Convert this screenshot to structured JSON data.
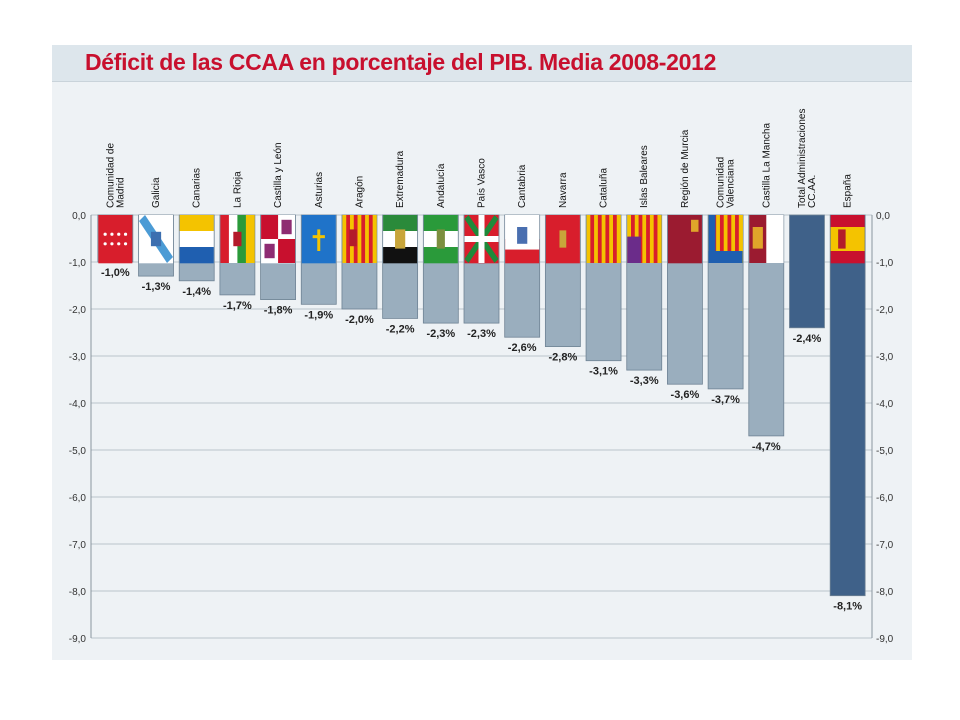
{
  "title": "Déficit de las CCAA en porcentaje del PIB. Media 2008-2012",
  "colors": {
    "accent_title": "#c8102e",
    "bar_region": "#9aaebe",
    "bar_total": "#3f6189"
  },
  "chart_data": {
    "type": "bar",
    "title": "Déficit de las CCAA en porcentaje del PIB. Media 2008-2012",
    "xlabel": "",
    "ylabel": "",
    "ylim": [
      -9,
      0
    ],
    "yticks": [
      "0,0",
      "-1,0",
      "-2,0",
      "-3,0",
      "-4,0",
      "-5,0",
      "-6,0",
      "-7,0",
      "-8,0",
      "-9,0"
    ],
    "grid": true,
    "categories": [
      "Comunidad de Madrid",
      "Galicia",
      "Canarias",
      "La Rioja",
      "Castilla y León",
      "Asturias",
      "Aragón",
      "Extremadura",
      "Andalucía",
      "País Vasco",
      "Cantabria",
      "Navarra",
      "Cataluña",
      "Islas Baleares",
      "Región de Murcia",
      "Comunidad Valenciana",
      "Castilla La Mancha",
      "Total Administraciones CC.AA.",
      "España"
    ],
    "values": [
      -1.0,
      -1.3,
      -1.4,
      -1.7,
      -1.8,
      -1.9,
      -2.0,
      -2.2,
      -2.3,
      -2.3,
      -2.6,
      -2.8,
      -3.1,
      -3.3,
      -3.6,
      -3.7,
      -4.7,
      -2.4,
      -8.1
    ],
    "value_labels": [
      "-1,0%",
      "-1,3%",
      "-1,4%",
      "-1,7%",
      "-1,8%",
      "-1,9%",
      "-2,0%",
      "-2,2%",
      "-2,3%",
      "-2,3%",
      "-2,6%",
      "-2,8%",
      "-3,1%",
      "-3,3%",
      "-3,6%",
      "-3,7%",
      "-4,7%",
      "-2,4%",
      "-8,1%"
    ],
    "label_lines": [
      [
        "Comunidad de",
        "Madrid"
      ],
      [
        "Galicia"
      ],
      [
        "Canarias"
      ],
      [
        "La Rioja"
      ],
      [
        "Castilla y León"
      ],
      [
        "Asturias"
      ],
      [
        "Aragón"
      ],
      [
        "Extremadura"
      ],
      [
        "Andalucía"
      ],
      [
        "País Vasco"
      ],
      [
        "Cantabria"
      ],
      [
        "Navarra"
      ],
      [
        "Cataluña"
      ],
      [
        "Islas Baleares"
      ],
      [
        "Región de Murcia"
      ],
      [
        "Comunidad",
        "Valenciana"
      ],
      [
        "Castilla La Mancha"
      ],
      [
        "Total Administraciones",
        "CC.AA."
      ],
      [
        "España"
      ]
    ],
    "bar_kind": [
      "region",
      "region",
      "region",
      "region",
      "region",
      "region",
      "region",
      "region",
      "region",
      "region",
      "region",
      "region",
      "region",
      "region",
      "region",
      "region",
      "region",
      "total",
      "total"
    ],
    "flags": [
      "madrid-flag",
      "galicia-flag",
      "canarias-flag",
      "la-rioja-flag",
      "castilla-leon-flag",
      "asturias-flag",
      "aragon-flag",
      "extremadura-flag",
      "andalucia-flag",
      "pais-vasco-flag",
      "cantabria-flag",
      "navarra-flag",
      "cataluna-flag",
      "islas-baleares-flag",
      "murcia-flag",
      "comunidad-valenciana-flag",
      "castilla-la-mancha-flag",
      "",
      "espana-flag"
    ]
  }
}
